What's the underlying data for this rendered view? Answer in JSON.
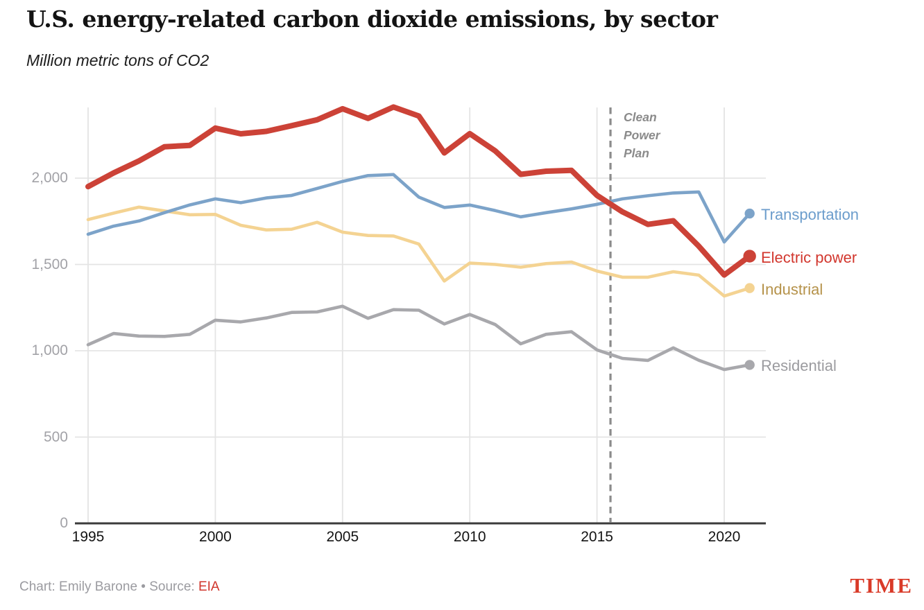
{
  "header": {
    "title": "U.S. energy-related carbon dioxide emissions, by sector",
    "subtitle": "Million metric tons of CO2"
  },
  "annotation": {
    "lines": [
      "Clean",
      "Power",
      "Plan"
    ],
    "event_x": 2015.53
  },
  "footer": {
    "credit_prefix": "Chart: Emily Barone • Source: ",
    "source_label": "EIA",
    "logo": "TIME"
  },
  "colors": {
    "background": "#ffffff",
    "grid": "#e4e4e4",
    "axis": "#3b3b3b",
    "dashed_line": "#8b8b8b",
    "y_tick_text": "#a2a2a7",
    "x_tick_text": "#131313",
    "annotation_text": "#8a8a8a",
    "credit_text": "#9b9ba0",
    "source_link": "#d0352b",
    "time_logo": "#d93a28"
  },
  "chart_data": {
    "type": "line",
    "title": "U.S. energy-related carbon dioxide emissions, by sector",
    "ylabel": "Million metric tons of CO2",
    "xlim": [
      1995,
      2021
    ],
    "ylim": [
      0,
      2470
    ],
    "grid": true,
    "legend_position": "right",
    "x": [
      1995,
      1996,
      1997,
      1998,
      1999,
      2000,
      2001,
      2002,
      2003,
      2004,
      2005,
      2006,
      2007,
      2008,
      2009,
      2010,
      2011,
      2012,
      2013,
      2014,
      2015,
      2016,
      2017,
      2018,
      2019,
      2020,
      2021
    ],
    "series": [
      {
        "name": "Industrial",
        "color": "#f4d392",
        "label_color": "#b5924a",
        "thick": false,
        "values": [
          1760,
          1797,
          1832,
          1810,
          1788,
          1790,
          1727,
          1700,
          1704,
          1744,
          1687,
          1668,
          1665,
          1618,
          1404,
          1508,
          1500,
          1484,
          1505,
          1514,
          1462,
          1426,
          1426,
          1458,
          1438,
          1317,
          1363
        ]
      },
      {
        "name": "Residential",
        "color": "#a8a8ac",
        "label_color": "#9b9b9f",
        "thick": false,
        "values": [
          1035,
          1100,
          1085,
          1083,
          1095,
          1177,
          1167,
          1190,
          1222,
          1225,
          1258,
          1188,
          1238,
          1235,
          1155,
          1210,
          1152,
          1040,
          1095,
          1110,
          1005,
          956,
          944,
          1017,
          945,
          891,
          918
        ]
      },
      {
        "name": "Transportation",
        "color": "#7ca3c9",
        "label_color": "#6c9dcc",
        "thick": false,
        "values": [
          1675,
          1722,
          1752,
          1800,
          1845,
          1880,
          1858,
          1885,
          1900,
          1940,
          1981,
          2015,
          2021,
          1890,
          1830,
          1844,
          1812,
          1776,
          1800,
          1822,
          1848,
          1880,
          1898,
          1914,
          1920,
          1630,
          1795
        ]
      },
      {
        "name": "Electric power",
        "color": "#cc4237",
        "label_color": "#d2372e",
        "thick": true,
        "values": [
          1951,
          2030,
          2100,
          2182,
          2190,
          2290,
          2257,
          2271,
          2304,
          2338,
          2402,
          2346,
          2412,
          2360,
          2146,
          2258,
          2158,
          2022,
          2040,
          2045,
          1900,
          1805,
          1732,
          1753,
          1606,
          1439,
          1548
        ]
      }
    ],
    "x_ticks": [
      {
        "label": "1995",
        "value": 1995
      },
      {
        "label": "2000",
        "value": 2000
      },
      {
        "label": "2005",
        "value": 2005
      },
      {
        "label": "2010",
        "value": 2010
      },
      {
        "label": "2015",
        "value": 2015
      },
      {
        "label": "2020",
        "value": 2020
      }
    ],
    "y_ticks": [
      {
        "label": "0",
        "value": 0
      },
      {
        "label": "500",
        "value": 500
      },
      {
        "label": "1,000",
        "value": 1000
      },
      {
        "label": "1,500",
        "value": 1500
      },
      {
        "label": "2,000",
        "value": 2000
      }
    ]
  }
}
